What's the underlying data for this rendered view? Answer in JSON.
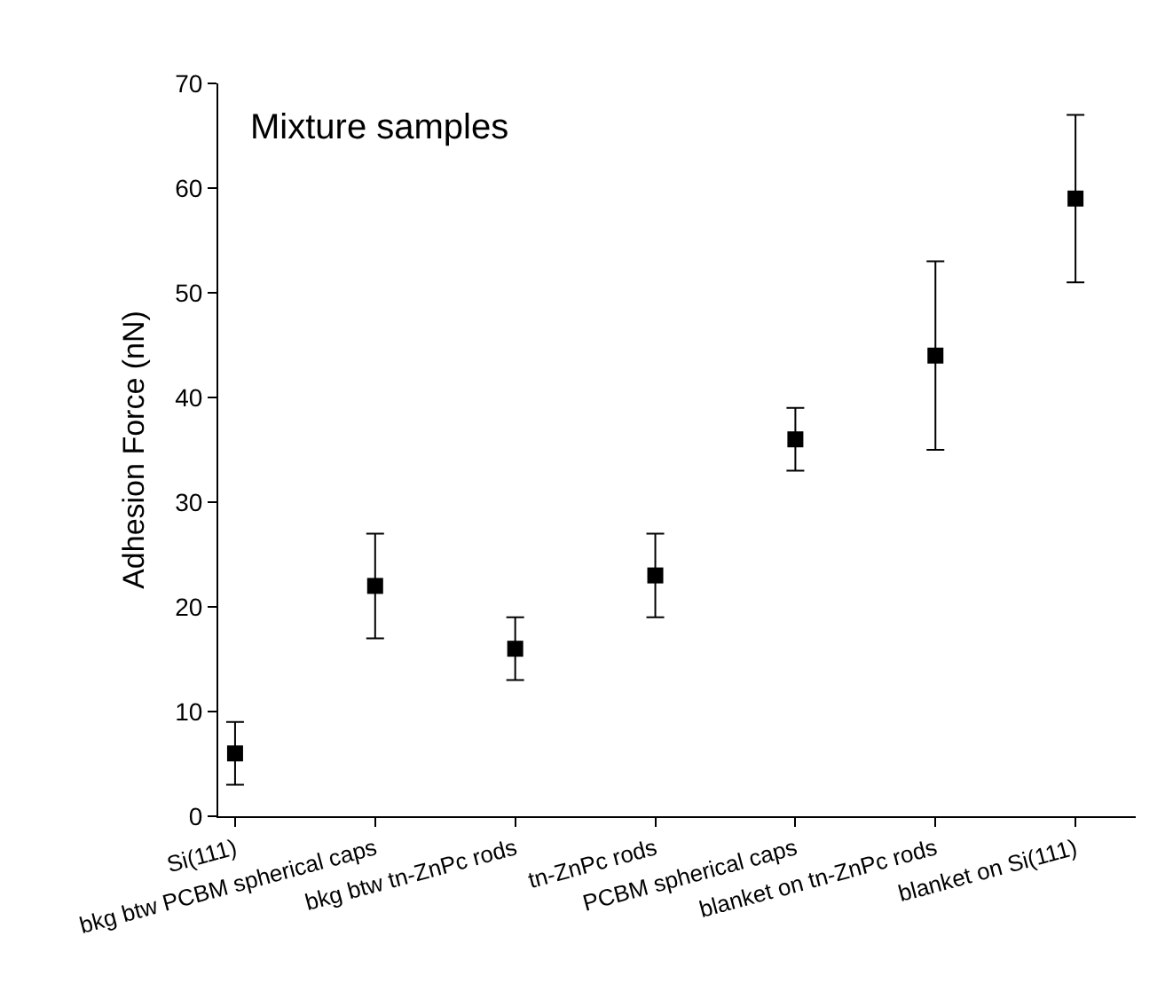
{
  "chart_data": {
    "type": "scatter",
    "ylabel": "Adhesion Force (nN)",
    "annotations": [
      "Mixture samples"
    ],
    "categories": [
      "Si(111)",
      "bkg btw PCBM spherical caps",
      "bkg btw tn-ZnPc rods",
      "tn-ZnPc rods",
      "PCBM spherical caps",
      "blanket on tn-ZnPc rods",
      "blanket on Si(111)"
    ],
    "values": [
      6,
      22,
      16,
      23,
      36,
      44,
      59
    ],
    "errors": [
      [
        3,
        9
      ],
      [
        17,
        27
      ],
      [
        13,
        19
      ],
      [
        19,
        27
      ],
      [
        33,
        39
      ],
      [
        35,
        53
      ],
      [
        51,
        67
      ]
    ],
    "color": "#000000",
    "marker": "square",
    "grid": false,
    "legend": false,
    "ylim": [
      0,
      70
    ],
    "yticks": [
      0,
      10,
      20,
      30,
      40,
      50,
      60,
      70
    ]
  }
}
